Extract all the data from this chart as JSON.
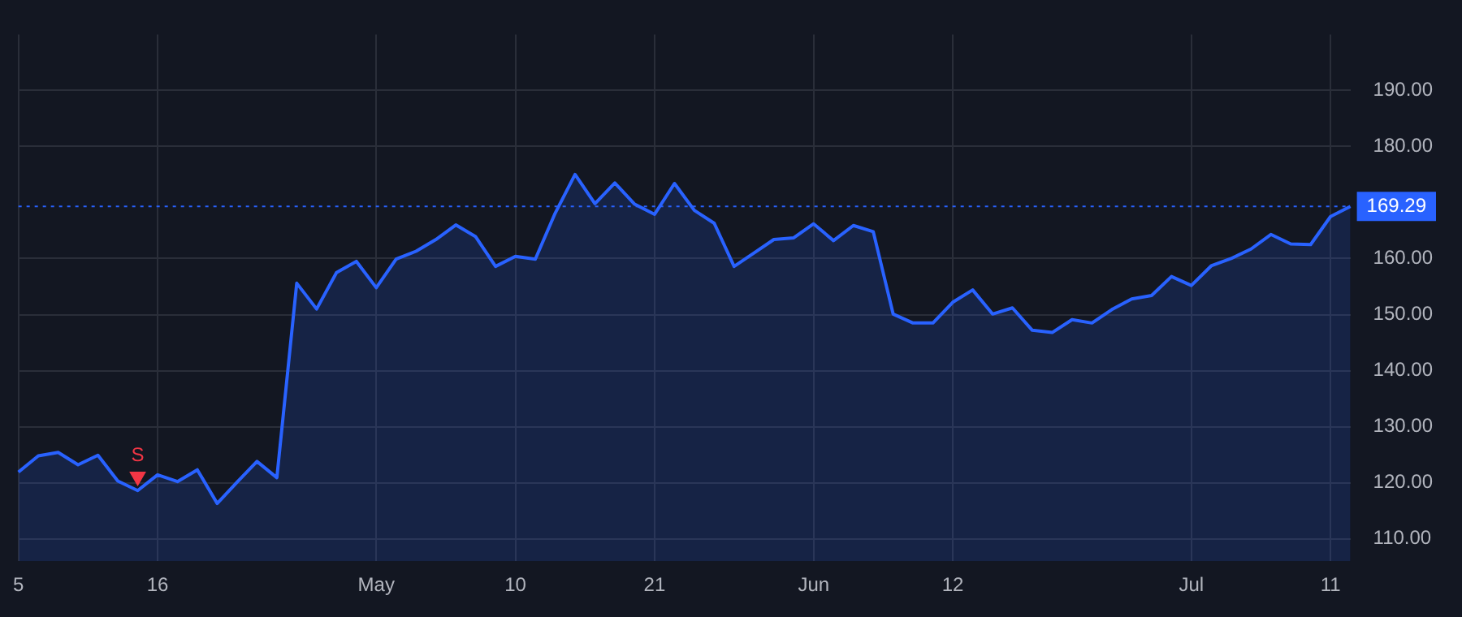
{
  "chart_data": {
    "type": "area",
    "categories": [
      "5",
      null,
      null,
      null,
      null,
      null,
      null,
      "16",
      null,
      null,
      null,
      null,
      null,
      null,
      null,
      null,
      null,
      null,
      "May",
      null,
      null,
      null,
      null,
      null,
      null,
      "10",
      null,
      null,
      null,
      null,
      null,
      null,
      "21",
      null,
      null,
      null,
      null,
      null,
      null,
      null,
      "Jun",
      null,
      null,
      null,
      null,
      null,
      null,
      "12",
      null,
      null,
      null,
      null,
      null,
      null,
      null,
      null,
      null,
      null,
      null,
      "Jul",
      null,
      null,
      null,
      null,
      null,
      null,
      "11",
      null
    ],
    "series": [
      {
        "type": "area",
        "color": "#2962ff",
        "values": [
          121.9,
          124.8,
          125.4,
          123.2,
          124.9,
          120.3,
          118.6,
          121.4,
          120.2,
          122.3,
          116.3,
          120.1,
          123.8,
          120.9,
          155.6,
          151.0,
          157.5,
          159.5,
          154.8,
          159.9,
          161.3,
          163.4,
          166.0,
          163.9,
          158.6,
          160.4,
          159.9,
          168.1,
          175.0,
          169.8,
          173.5,
          169.7,
          167.9,
          173.4,
          168.6,
          166.3,
          158.6,
          161.0,
          163.4,
          163.7,
          166.2,
          163.2,
          165.9,
          164.8,
          150.1,
          148.5,
          148.5,
          152.2,
          154.4,
          150.1,
          151.2,
          147.2,
          146.8,
          149.1,
          148.5,
          150.9,
          152.8,
          153.4,
          156.8,
          155.2,
          158.7,
          160.0,
          161.7,
          164.3,
          162.6,
          162.5,
          167.5,
          169.3
        ]
      },
      {
        "type": "scatter",
        "name": "S",
        "color": "#f23645",
        "marker": "triangle",
        "values": [
          null,
          null,
          null,
          null,
          null,
          null,
          121.1,
          null,
          null,
          null,
          null,
          null,
          null,
          null,
          null,
          null,
          null,
          null,
          null,
          null,
          null,
          null,
          null,
          null,
          null,
          null,
          null,
          null,
          null,
          null,
          null,
          null,
          null,
          null,
          null,
          null,
          null,
          null,
          null,
          null,
          null,
          null,
          null,
          null,
          null,
          null,
          null,
          null,
          null,
          null,
          null,
          null,
          null,
          null,
          null,
          null,
          null,
          null,
          null,
          null,
          null,
          null,
          null,
          null,
          null,
          null,
          null,
          null
        ]
      }
    ],
    "ylim": [
      106,
      200
    ],
    "yticks": [
      {
        "value": 110,
        "label": "110.00"
      },
      {
        "value": 120,
        "label": "120.00"
      },
      {
        "value": 130,
        "label": "130.00"
      },
      {
        "value": 140,
        "label": "140.00"
      },
      {
        "value": 150,
        "label": "150.00"
      },
      {
        "value": 160,
        "label": "160.00"
      },
      {
        "value": 180,
        "label": "180.00"
      },
      {
        "value": 190,
        "label": "190.00"
      }
    ],
    "ref_lines": [
      {
        "axis": "y",
        "value": 169.29,
        "label": "169.29",
        "color": "#2962ff",
        "line_style": "dotted"
      }
    ],
    "grid": true,
    "legend": false
  }
}
